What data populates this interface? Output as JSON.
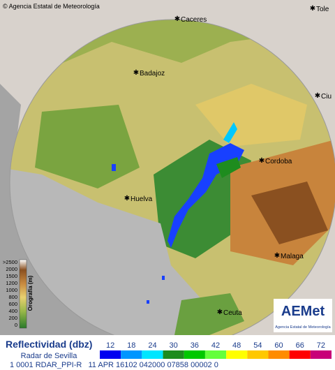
{
  "map": {
    "credit": "© Agencia Estatal de Meteorología",
    "cities": [
      {
        "label": "Caceres"
      },
      {
        "label": "Tole"
      },
      {
        "label": "Badajoz"
      },
      {
        "label": "Ciu"
      },
      {
        "label": "Cordoba"
      },
      {
        "label": "Huelva"
      },
      {
        "label": "Malaga"
      },
      {
        "label": "Ceuta"
      }
    ],
    "orography": {
      "title": "Orografía (m)",
      "levels": [
        ">2500",
        "2000",
        "1500",
        "1200",
        "1000",
        "800",
        "600",
        "400",
        "200",
        "0"
      ]
    }
  },
  "logo": {
    "name": "AEMet",
    "subtitle": "Agencia Estatal de Meteorología"
  },
  "legend": {
    "title": "Reflectividad (dbz)",
    "subtitle": "Radar de Sevilla",
    "levels": [
      {
        "value": 12,
        "color": "#0000f0"
      },
      {
        "value": 18,
        "color": "#0096ff"
      },
      {
        "value": 24,
        "color": "#00e6ff"
      },
      {
        "value": 30,
        "color": "#1e8c1e"
      },
      {
        "value": 36,
        "color": "#00c800"
      },
      {
        "value": 42,
        "color": "#64ff3c"
      },
      {
        "value": 48,
        "color": "#ffff00"
      },
      {
        "value": 54,
        "color": "#ffc800"
      },
      {
        "value": 60,
        "color": "#ff8c00"
      },
      {
        "value": 66,
        "color": "#ff0000"
      },
      {
        "value": 72,
        "color": "#c80078"
      }
    ]
  },
  "status_line": "1 0001 RDAR_PPI-R   11 APR 16102 042000 07858 00002 0"
}
